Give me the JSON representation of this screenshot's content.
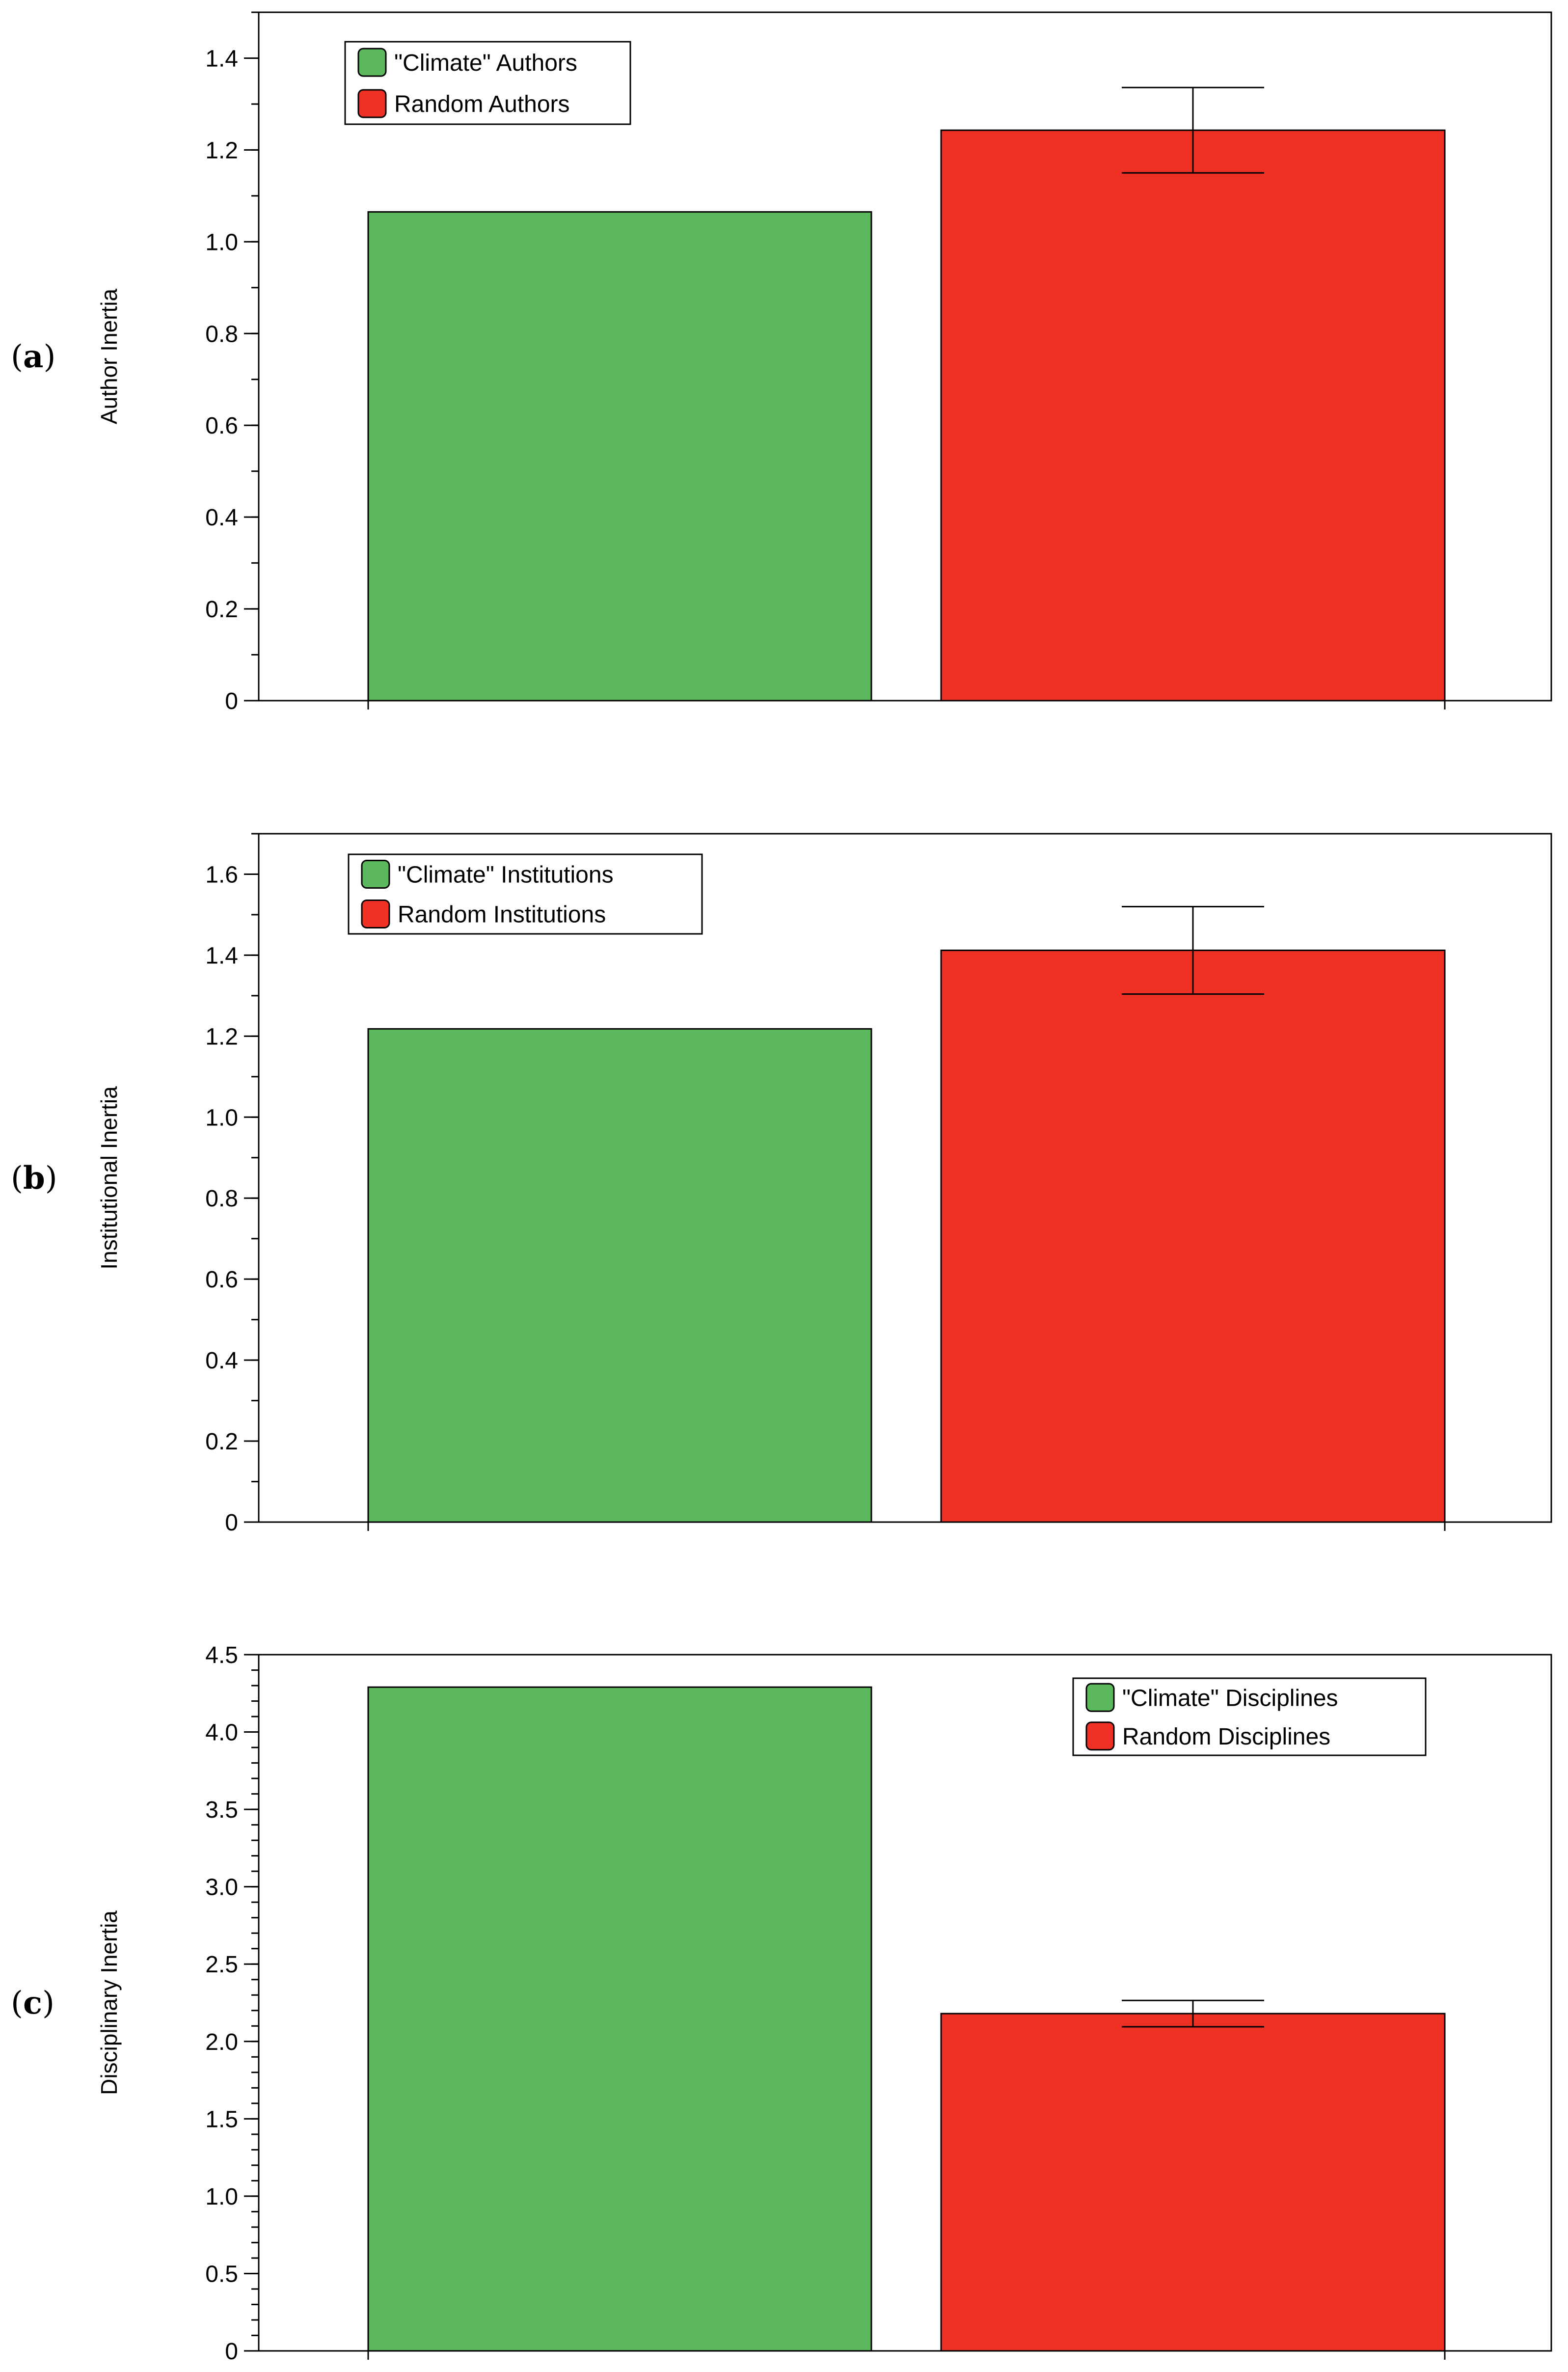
{
  "colors": {
    "climate": "#5cb85c",
    "random": "#ee3124",
    "axis": "#000000"
  },
  "chart_data": [
    {
      "panel": "(a)",
      "panel_letter": "a",
      "type": "bar",
      "categories": [
        "\"Climate\" Authors",
        "Random Authors"
      ],
      "values": [
        1.065,
        1.243
      ],
      "error": [
        null,
        0.093
      ],
      "ylabel": "Author Inertia",
      "ylim": [
        0,
        1.5
      ],
      "yticks": [
        0,
        0.2,
        0.4,
        0.6,
        0.8,
        1.0,
        1.2,
        1.4
      ],
      "ytick_labels": [
        "0",
        "0.2",
        "0.4",
        "0.6",
        "0.8",
        "1.0",
        "1.2",
        "1.4"
      ],
      "minor_step": 0.1,
      "legend_position": "top-left",
      "grid": false
    },
    {
      "panel": "(b)",
      "panel_letter": "b",
      "type": "bar",
      "categories": [
        "\"Climate\" Institutions",
        "Random Institutions"
      ],
      "values": [
        1.218,
        1.412
      ],
      "error": [
        null,
        0.108
      ],
      "ylabel": "Institutional Inertia",
      "ylim": [
        0,
        1.7
      ],
      "yticks": [
        0,
        0.2,
        0.4,
        0.6,
        0.8,
        1.0,
        1.2,
        1.4,
        1.6
      ],
      "ytick_labels": [
        "0",
        "0.2",
        "0.4",
        "0.6",
        "0.8",
        "1.0",
        "1.2",
        "1.4",
        "1.6"
      ],
      "minor_step": 0.1,
      "legend_position": "top-left",
      "grid": false
    },
    {
      "panel": "(c)",
      "panel_letter": "c",
      "type": "bar",
      "categories": [
        "\"Climate\" Disciplines",
        "Random Disciplines"
      ],
      "values": [
        4.29,
        2.18
      ],
      "error": [
        null,
        0.085
      ],
      "ylabel": "Disciplinary Inertia",
      "ylim": [
        0,
        4.5
      ],
      "yticks": [
        0,
        0.5,
        1.0,
        1.5,
        2.0,
        2.5,
        3.0,
        3.5,
        4.0,
        4.5
      ],
      "ytick_labels": [
        "0",
        "0.5",
        "1.0",
        "1.5",
        "2.0",
        "2.5",
        "3.0",
        "3.5",
        "4.0",
        "4.5"
      ],
      "minor_step": 0.1,
      "legend_position": "top-right",
      "grid": false
    }
  ]
}
